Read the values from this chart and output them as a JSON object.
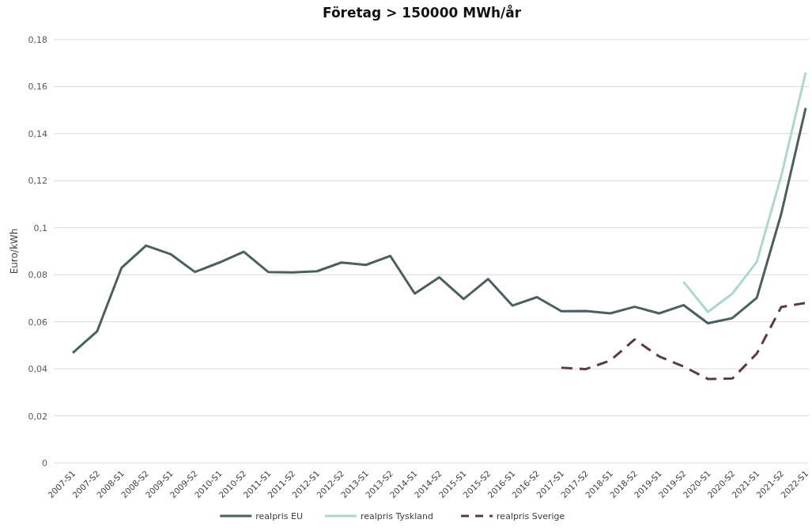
{
  "chart_data": {
    "type": "line",
    "title": "Företag > 150000 MWh/år",
    "ylabel": "Euro/kWh",
    "categories": [
      "2007-S1",
      "2007-S2",
      "2008-S1",
      "2008-S2",
      "2009-S1",
      "2009-S2",
      "2010-S1",
      "2010-S2",
      "2011-S1",
      "2011-S2",
      "2012-S1",
      "2012-S2",
      "2013-S1",
      "2013-S2",
      "2014-S1",
      "2014-S2",
      "2015-S1",
      "2015-S2",
      "2016-S1",
      "2016-S2",
      "2017-S1",
      "2017-S2",
      "2018-S1",
      "2018-S2",
      "2019-S1",
      "2019-S2",
      "2020-S1",
      "2020-S2",
      "2021-S1",
      "2021-S2",
      "2022-S1"
    ],
    "series": [
      {
        "name": "realpris EU",
        "color": "#4a5f60",
        "line_style": "solid",
        "values": [
          0.0468,
          0.056,
          0.083,
          0.0924,
          0.0888,
          0.0812,
          0.0852,
          0.0898,
          0.0812,
          0.081,
          0.0815,
          0.0852,
          0.0842,
          0.088,
          0.072,
          0.0789,
          0.0697,
          0.0782,
          0.0669,
          0.0705,
          0.0645,
          0.0646,
          0.0636,
          0.0664,
          0.0636,
          0.0671,
          0.0594,
          0.0616,
          0.0702,
          0.1059,
          0.1509
        ]
      },
      {
        "name": "realpris Tyskland",
        "color": "#aed6d0",
        "line_style": "solid",
        "values": [
          null,
          null,
          null,
          null,
          null,
          null,
          null,
          null,
          null,
          null,
          null,
          null,
          null,
          null,
          null,
          null,
          null,
          null,
          null,
          null,
          null,
          null,
          null,
          null,
          null,
          0.077,
          0.0642,
          0.072,
          0.0855,
          0.122,
          0.166
        ]
      },
      {
        "name": "realpris Sverige",
        "color": "#5a3a48",
        "line_style": "dashed",
        "values": [
          null,
          null,
          null,
          null,
          null,
          null,
          null,
          null,
          null,
          null,
          null,
          null,
          null,
          null,
          null,
          null,
          null,
          null,
          null,
          null,
          0.0405,
          0.0399,
          0.0435,
          0.0525,
          0.0453,
          0.041,
          0.0357,
          0.0359,
          0.0465,
          0.0663,
          0.068
        ]
      }
    ],
    "ylim": [
      0,
      0.18
    ],
    "yticks": [
      0,
      {
        "value": 0.02,
        "label": "0,02"
      },
      {
        "value": 0.04,
        "label": "0,04"
      },
      {
        "value": 0.06,
        "label": "0,06"
      },
      {
        "value": 0.08,
        "label": "0,08"
      },
      {
        "value": 0.1,
        "label": "0,1"
      },
      {
        "value": 0.12,
        "label": "0,12"
      },
      {
        "value": 0.14,
        "label": "0,14"
      },
      {
        "value": 0.16,
        "label": "0,16"
      },
      {
        "value": 0.18,
        "label": "0,18"
      }
    ],
    "grid": "y",
    "legend": "bottom",
    "marker": "none"
  }
}
